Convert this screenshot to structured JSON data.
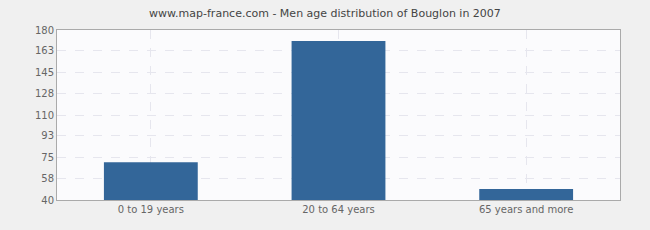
{
  "chart_data": {
    "type": "bar",
    "title": "www.map-france.com - Men age distribution of Bouglon in 2007",
    "categories": [
      "0 to 19 years",
      "20 to 64 years",
      "65 years and more"
    ],
    "values": [
      71,
      171,
      49
    ],
    "color": "#336699",
    "ylim": [
      40,
      180
    ],
    "yticks": [
      40,
      58,
      75,
      93,
      110,
      128,
      145,
      163,
      180
    ],
    "grid": true
  }
}
